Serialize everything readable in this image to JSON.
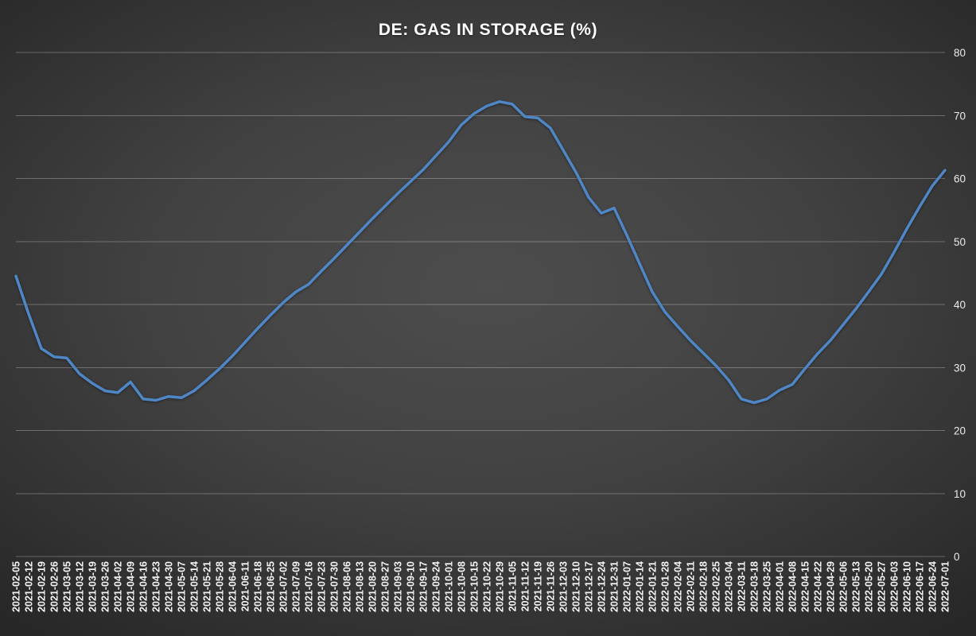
{
  "chart": {
    "title": "DE: GAS IN STORAGE (%)",
    "line_color": "#4f86c6",
    "background_center": "#4d4d4d",
    "background_edge": "#272727",
    "gridline_color": "rgba(255,255,255,0.28)",
    "text_color": "#f5f5f5"
  },
  "chart_data": {
    "type": "line",
    "title": "DE: GAS IN STORAGE (%)",
    "ylabel": "",
    "xlabel": "",
    "ylim": [
      0,
      80
    ],
    "yticks": [
      0,
      10,
      20,
      30,
      40,
      50,
      60,
      70,
      80
    ],
    "y_axis_position": "right",
    "grid": "horizontal",
    "legend_position": "none",
    "x": [
      "2021-02-05",
      "2021-02-12",
      "2021-02-19",
      "2021-02-26",
      "2021-03-05",
      "2021-03-12",
      "2021-03-19",
      "2021-03-26",
      "2021-04-02",
      "2021-04-09",
      "2021-04-16",
      "2021-04-23",
      "2021-04-30",
      "2021-05-07",
      "2021-05-14",
      "2021-05-21",
      "2021-05-28",
      "2021-06-04",
      "2021-06-11",
      "2021-06-18",
      "2021-06-25",
      "2021-07-02",
      "2021-07-09",
      "2021-07-16",
      "2021-07-23",
      "2021-07-30",
      "2021-08-06",
      "2021-08-13",
      "2021-08-20",
      "2021-08-27",
      "2021-09-03",
      "2021-09-10",
      "2021-09-17",
      "2021-09-24",
      "2021-10-01",
      "2021-10-08",
      "2021-10-15",
      "2021-10-22",
      "2021-10-29",
      "2021-11-05",
      "2021-11-12",
      "2021-11-19",
      "2021-11-26",
      "2021-12-03",
      "2021-12-10",
      "2021-12-17",
      "2021-12-24",
      "2021-12-31",
      "2022-01-07",
      "2022-01-14",
      "2022-01-21",
      "2022-01-28",
      "2022-02-04",
      "2022-02-11",
      "2022-02-18",
      "2022-02-25",
      "2022-03-04",
      "2022-03-11",
      "2022-03-18",
      "2022-03-25",
      "2022-04-01",
      "2022-04-08",
      "2022-04-15",
      "2022-04-22",
      "2022-04-29",
      "2022-05-06",
      "2022-05-13",
      "2022-05-20",
      "2022-05-27",
      "2022-06-03",
      "2022-06-10",
      "2022-06-17",
      "2022-06-24",
      "2022-07-01"
    ],
    "values": [
      44.5,
      38.5,
      33.0,
      31.7,
      31.5,
      29.0,
      27.5,
      26.3,
      26.0,
      27.7,
      25.0,
      24.8,
      25.4,
      25.2,
      26.3,
      28.0,
      29.8,
      31.8,
      34.0,
      36.2,
      38.3,
      40.3,
      42.0,
      43.2,
      45.3,
      47.3,
      49.4,
      51.5,
      53.6,
      55.6,
      57.6,
      59.5,
      61.4,
      63.6,
      65.8,
      68.5,
      70.3,
      71.5,
      72.2,
      71.8,
      69.8,
      69.6,
      68.0,
      64.5,
      61.0,
      57.0,
      54.5,
      55.3,
      51.0,
      46.5,
      42.0,
      38.8,
      36.5,
      34.3,
      32.3,
      30.3,
      28.0,
      25.0,
      24.4,
      25.0,
      26.4,
      27.3,
      29.8,
      32.2,
      34.3,
      36.8,
      39.3,
      42.0,
      44.8,
      48.3,
      52.0,
      55.5,
      58.8,
      61.3
    ]
  }
}
